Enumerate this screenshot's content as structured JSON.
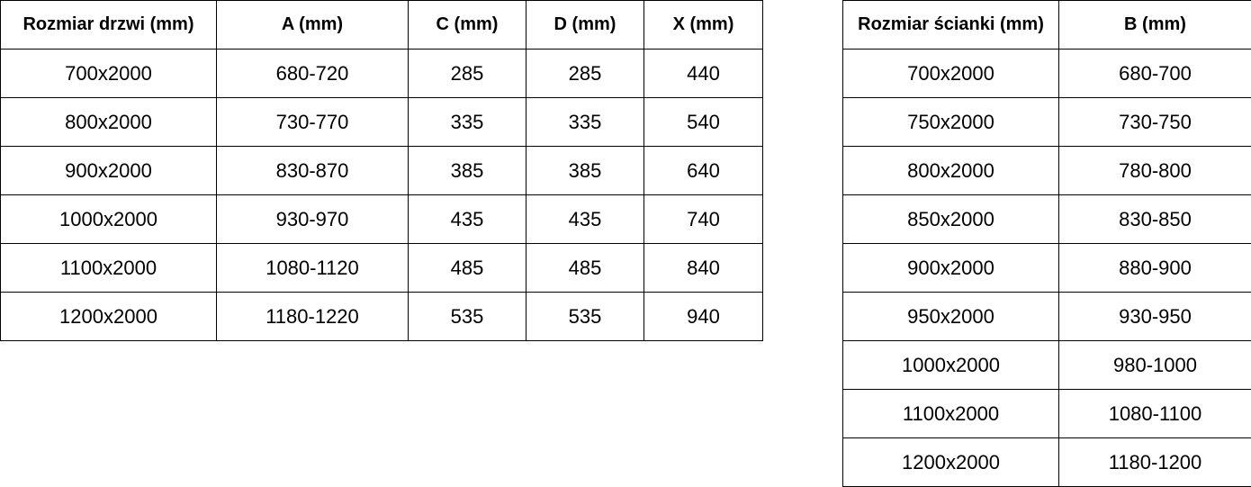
{
  "door_table": {
    "headers": [
      "Rozmiar drzwi (mm)",
      "A (mm)",
      "C (mm)",
      "D (mm)",
      "X (mm)"
    ],
    "rows": [
      [
        "700x2000",
        "680-720",
        "285",
        "285",
        "440"
      ],
      [
        "800x2000",
        "730-770",
        "335",
        "335",
        "540"
      ],
      [
        "900x2000",
        "830-870",
        "385",
        "385",
        "640"
      ],
      [
        "1000x2000",
        "930-970",
        "435",
        "435",
        "740"
      ],
      [
        "1100x2000",
        "1080-1120",
        "485",
        "485",
        "840"
      ],
      [
        "1200x2000",
        "1180-1220",
        "535",
        "535",
        "940"
      ]
    ]
  },
  "wall_table": {
    "headers": [
      "Rozmiar ścianki (mm)",
      "B (mm)"
    ],
    "rows": [
      [
        "700x2000",
        "680-700"
      ],
      [
        "750x2000",
        "730-750"
      ],
      [
        "800x2000",
        "780-800"
      ],
      [
        "850x2000",
        "830-850"
      ],
      [
        "900x2000",
        "880-900"
      ],
      [
        "950x2000",
        "930-950"
      ],
      [
        "1000x2000",
        "980-1000"
      ],
      [
        "1100x2000",
        "1080-1100"
      ],
      [
        "1200x2000",
        "1180-1200"
      ]
    ]
  }
}
